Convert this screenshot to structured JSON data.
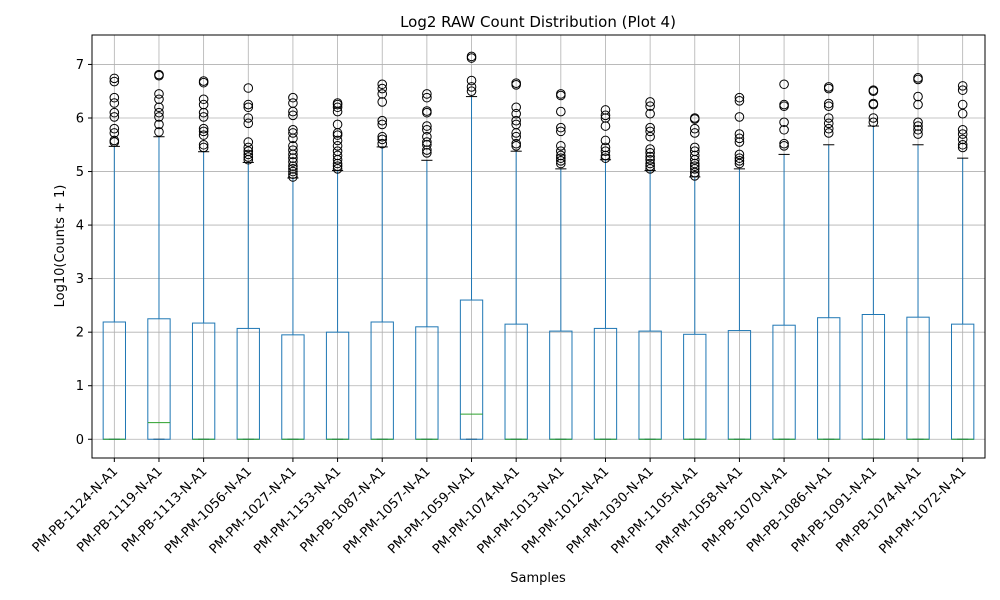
{
  "chart_data": {
    "type": "box",
    "title": "Log2 RAW Count Distribution (Plot 4)",
    "xlabel": "Samples",
    "ylabel": "Log10(Counts + 1)",
    "ylim": [
      -0.35,
      7.55
    ],
    "yticks": [
      0,
      1,
      2,
      3,
      4,
      5,
      6,
      7
    ],
    "grid": true,
    "colors": {
      "box": "#1f77b4",
      "median": "#2ca02c",
      "grid": "#b0b0b0",
      "axis": "#000000"
    },
    "categories": [
      "PM-PB-1124-N-A1",
      "PM-PB-1119-N-A1",
      "PM-PB-1113-N-A1",
      "PM-PM-1056-N-A1",
      "PM-PM-1027-N-A1",
      "PM-PM-1153-N-A1",
      "PM-PB-1087-N-A1",
      "PM-PM-1057-N-A1",
      "PM-PM-1059-N-A1",
      "PM-PM-1074-N-A1",
      "PM-PM-1013-N-A1",
      "PM-PM-1012-N-A1",
      "PM-PM-1030-N-A1",
      "PM-PM-1105-N-A1",
      "PM-PM-1058-N-A1",
      "PM-PB-1070-N-A1",
      "PM-PB-1086-N-A1",
      "PM-PB-1091-N-A1",
      "PM-PB-1074-N-A1",
      "PM-PM-1072-N-A1"
    ],
    "boxes": [
      {
        "q1": 0,
        "median": 0,
        "q3": 2.19,
        "whisker_low": 0,
        "whisker_high": 5.47,
        "outliers": [
          5.55,
          5.58,
          5.72,
          5.8,
          6.02,
          6.1,
          6.28,
          6.38,
          6.68,
          6.74
        ]
      },
      {
        "q1": 0,
        "median": 0.31,
        "q3": 2.25,
        "whisker_low": 0,
        "whisker_high": 5.65,
        "outliers": [
          5.74,
          5.88,
          6.02,
          6.1,
          6.2,
          6.35,
          6.45,
          6.79,
          6.81
        ]
      },
      {
        "q1": 0,
        "median": 0,
        "q3": 2.17,
        "whisker_low": 0,
        "whisker_high": 5.37,
        "outliers": [
          5.45,
          5.5,
          5.68,
          5.75,
          5.8,
          6.02,
          6.1,
          6.25,
          6.35,
          6.66,
          6.69
        ]
      },
      {
        "q1": 0,
        "median": 0,
        "q3": 2.07,
        "whisker_low": 0,
        "whisker_high": 5.17,
        "outliers": [
          5.22,
          5.27,
          5.32,
          5.38,
          5.45,
          5.55,
          5.9,
          6.0,
          6.2,
          6.25,
          6.56
        ]
      },
      {
        "q1": 0,
        "median": 0,
        "q3": 1.95,
        "whisker_low": 0,
        "whisker_high": 4.88,
        "outliers": [
          4.9,
          4.95,
          5.0,
          5.05,
          5.1,
          5.18,
          5.25,
          5.32,
          5.4,
          5.48,
          5.62,
          5.72,
          5.78,
          6.05,
          6.12,
          6.28,
          6.38
        ]
      },
      {
        "q1": 0,
        "median": 0,
        "q3": 2.0,
        "whisker_low": 0,
        "whisker_high": 5.02,
        "outliers": [
          5.05,
          5.1,
          5.15,
          5.22,
          5.3,
          5.38,
          5.48,
          5.58,
          5.68,
          5.72,
          5.88,
          6.12,
          6.2,
          6.25,
          6.28
        ]
      },
      {
        "q1": 0,
        "median": 0,
        "q3": 2.19,
        "whisker_low": 0,
        "whisker_high": 5.46,
        "outliers": [
          5.52,
          5.6,
          5.65,
          5.88,
          5.95,
          6.3,
          6.45,
          6.55,
          6.63
        ]
      },
      {
        "q1": 0,
        "median": 0,
        "q3": 2.1,
        "whisker_low": 0,
        "whisker_high": 5.21,
        "outliers": [
          5.35,
          5.4,
          5.5,
          5.55,
          5.65,
          5.78,
          5.85,
          6.1,
          6.13,
          6.38,
          6.45
        ]
      },
      {
        "q1": 0,
        "median": 0.47,
        "q3": 2.6,
        "whisker_low": 0,
        "whisker_high": 6.4,
        "outliers": [
          6.5,
          6.58,
          6.7,
          7.12,
          7.15
        ]
      },
      {
        "q1": 0,
        "median": 0,
        "q3": 2.15,
        "whisker_low": 0,
        "whisker_high": 5.38,
        "outliers": [
          5.48,
          5.52,
          5.65,
          5.72,
          5.88,
          5.95,
          6.08,
          6.2,
          6.62,
          6.65
        ]
      },
      {
        "q1": 0,
        "median": 0,
        "q3": 2.02,
        "whisker_low": 0,
        "whisker_high": 5.05,
        "outliers": [
          5.15,
          5.2,
          5.25,
          5.3,
          5.38,
          5.48,
          5.75,
          5.82,
          6.12,
          6.42,
          6.45
        ]
      },
      {
        "q1": 0,
        "median": 0,
        "q3": 2.07,
        "whisker_low": 0,
        "whisker_high": 5.22,
        "outliers": [
          5.25,
          5.3,
          5.38,
          5.45,
          5.58,
          5.85,
          6.0,
          6.05,
          6.15
        ]
      },
      {
        "q1": 0,
        "median": 0,
        "q3": 2.02,
        "whisker_low": 0,
        "whisker_high": 5.02,
        "outliers": [
          5.05,
          5.1,
          5.15,
          5.22,
          5.28,
          5.35,
          5.42,
          5.65,
          5.75,
          5.82,
          6.08,
          6.22,
          6.3
        ]
      },
      {
        "q1": 0,
        "median": 0,
        "q3": 1.96,
        "whisker_low": 0,
        "whisker_high": 4.9,
        "outliers": [
          4.92,
          4.98,
          5.05,
          5.1,
          5.15,
          5.22,
          5.3,
          5.38,
          5.45,
          5.72,
          5.8,
          5.98,
          6.0
        ]
      },
      {
        "q1": 0,
        "median": 0,
        "q3": 2.03,
        "whisker_low": 0,
        "whisker_high": 5.05,
        "outliers": [
          5.15,
          5.2,
          5.25,
          5.32,
          5.55,
          5.62,
          5.7,
          6.02,
          6.32,
          6.38
        ]
      },
      {
        "q1": 0,
        "median": 0,
        "q3": 2.13,
        "whisker_low": 0,
        "whisker_high": 5.32,
        "outliers": [
          5.48,
          5.52,
          5.78,
          5.92,
          6.22,
          6.25,
          6.63
        ]
      },
      {
        "q1": 0,
        "median": 0,
        "q3": 2.27,
        "whisker_low": 0,
        "whisker_high": 5.5,
        "outliers": [
          5.72,
          5.8,
          5.9,
          6.0,
          6.22,
          6.27,
          6.55,
          6.58
        ]
      },
      {
        "q1": 0,
        "median": 0,
        "q3": 2.33,
        "whisker_low": 0,
        "whisker_high": 5.85,
        "outliers": [
          5.92,
          6.0,
          6.25,
          6.27,
          6.5,
          6.52
        ]
      },
      {
        "q1": 0,
        "median": 0,
        "q3": 2.28,
        "whisker_low": 0,
        "whisker_high": 5.5,
        "outliers": [
          5.7,
          5.78,
          5.85,
          5.92,
          6.25,
          6.4,
          6.72,
          6.75
        ]
      },
      {
        "q1": 0,
        "median": 0,
        "q3": 2.15,
        "whisker_low": 0,
        "whisker_high": 5.25,
        "outliers": [
          5.45,
          5.5,
          5.6,
          5.7,
          5.78,
          6.08,
          6.25,
          6.52,
          6.6
        ]
      }
    ]
  }
}
